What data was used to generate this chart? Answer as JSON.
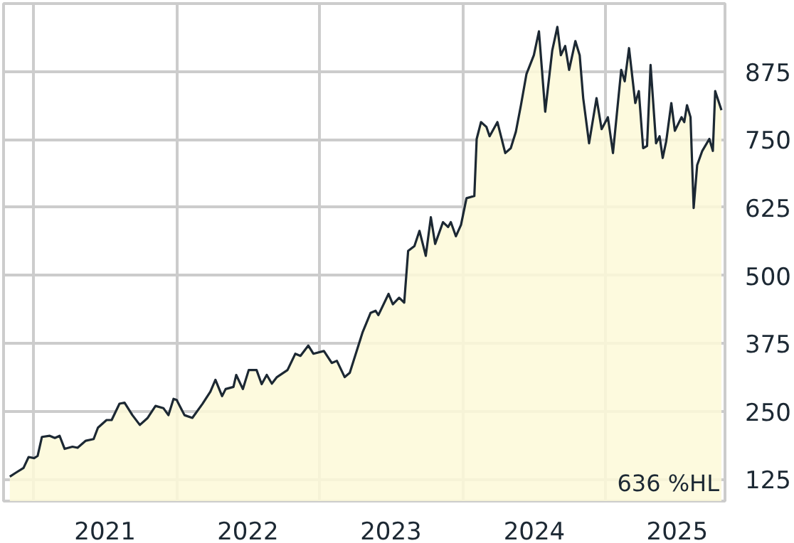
{
  "chart_data": {
    "type": "area",
    "x": [
      "2020-11-01",
      "2020-11-16",
      "2020-12-06",
      "2020-12-19",
      "2021-01-02",
      "2021-01-11",
      "2021-01-22",
      "2021-02-11",
      "2021-02-24",
      "2021-03-08",
      "2021-03-21",
      "2021-04-10",
      "2021-04-23",
      "2021-05-14",
      "2021-06-03",
      "2021-06-14",
      "2021-07-06",
      "2021-07-19",
      "2021-08-08",
      "2021-08-21",
      "2021-09-10",
      "2021-09-29",
      "2021-10-19",
      "2021-11-08",
      "2021-11-28",
      "2021-12-11",
      "2021-12-24",
      "2022-01-01",
      "2022-01-21",
      "2022-02-10",
      "2022-03-08",
      "2022-03-28",
      "2022-04-10",
      "2022-04-27",
      "2022-05-06",
      "2022-05-26",
      "2022-06-02",
      "2022-06-19",
      "2022-07-04",
      "2022-07-24",
      "2022-08-06",
      "2022-08-19",
      "2022-09-01",
      "2022-09-14",
      "2022-10-11",
      "2022-10-31",
      "2022-11-13",
      "2022-12-03",
      "2022-12-16",
      "2023-01-12",
      "2023-02-01",
      "2023-02-14",
      "2023-03-06",
      "2023-03-19",
      "2023-04-21",
      "2023-05-11",
      "2023-05-24",
      "2023-05-31",
      "2023-06-26",
      "2023-07-07",
      "2023-07-23",
      "2023-08-05",
      "2023-08-15",
      "2023-08-31",
      "2023-09-13",
      "2023-09-29",
      "2023-10-12",
      "2023-10-23",
      "2023-11-12",
      "2023-11-25",
      "2023-12-02",
      "2023-12-15",
      "2023-12-28",
      "2024-01-11",
      "2024-01-31",
      "2024-02-06",
      "2024-02-17",
      "2024-03-02",
      "2024-03-10",
      "2024-03-30",
      "2024-04-19",
      "2024-05-03",
      "2024-05-16",
      "2024-05-29",
      "2024-06-12",
      "2024-07-01",
      "2024-07-14",
      "2024-07-30",
      "2024-08-17",
      "2024-08-30",
      "2024-09-08",
      "2024-09-19",
      "2024-09-29",
      "2024-10-15",
      "2024-10-26",
      "2024-11-04",
      "2024-11-19",
      "2024-12-08",
      "2024-12-21",
      "2025-01-06",
      "2025-01-19",
      "2025-02-09",
      "2025-02-18",
      "2025-03-01",
      "2025-03-17",
      "2025-03-26",
      "2025-04-06",
      "2025-04-16",
      "2025-04-25",
      "2025-05-09",
      "2025-05-18",
      "2025-05-26",
      "2025-06-04",
      "2025-06-17",
      "2025-06-26",
      "2025-07-13",
      "2025-07-20",
      "2025-07-27",
      "2025-08-05",
      "2025-08-13",
      "2025-08-22",
      "2025-09-04",
      "2025-09-22",
      "2025-10-01",
      "2025-10-07",
      "2025-10-23"
    ],
    "series": [
      {
        "color": "#1c2833",
        "values": [
          130,
          137,
          146,
          166,
          164,
          168,
          203,
          205,
          201,
          205,
          181,
          185,
          183,
          196,
          199,
          220,
          234,
          234,
          264,
          266,
          243,
          225,
          238,
          260,
          256,
          243,
          273,
          271,
          243,
          238,
          264,
          286,
          308,
          278,
          291,
          295,
          317,
          291,
          326,
          326,
          300,
          317,
          301,
          313,
          326,
          356,
          352,
          371,
          356,
          361,
          339,
          343,
          313,
          321,
          396,
          431,
          435,
          427,
          466,
          447,
          459,
          450,
          545,
          554,
          582,
          536,
          607,
          558,
          598,
          589,
          598,
          572,
          593,
          642,
          646,
          751,
          782,
          773,
          756,
          782,
          725,
          734,
          764,
          813,
          870,
          905,
          949,
          801,
          914,
          957,
          905,
          922,
          878,
          931,
          905,
          826,
          743,
          826,
          769,
          791,
          725,
          878,
          857,
          918,
          817,
          839,
          734,
          738,
          887,
          743,
          756,
          716,
          747,
          817,
          766,
          791,
          782,
          813,
          791,
          624,
          703,
          729,
          751,
          729,
          839,
          804
        ]
      }
    ],
    "xlim": [
      "2020-10-16",
      "2025-11-01"
    ],
    "xticks": [
      {
        "value": "2021-01-01",
        "label": null
      },
      {
        "value": "2021-07-02",
        "label": "2021"
      },
      {
        "value": "2022-01-01",
        "label": null
      },
      {
        "value": "2022-07-02",
        "label": "2022"
      },
      {
        "value": "2023-01-01",
        "label": null
      },
      {
        "value": "2023-07-02",
        "label": "2023"
      },
      {
        "value": "2024-01-01",
        "label": null
      },
      {
        "value": "2024-07-02",
        "label": "2024"
      },
      {
        "value": "2025-01-01",
        "label": null
      },
      {
        "value": "2025-07-02",
        "label": "2025"
      }
    ],
    "ylim": [
      85,
      1000
    ],
    "yticks": [
      125,
      250,
      375,
      500,
      625,
      750,
      875
    ],
    "grid": true,
    "annotations": [
      "636 %HL"
    ]
  }
}
